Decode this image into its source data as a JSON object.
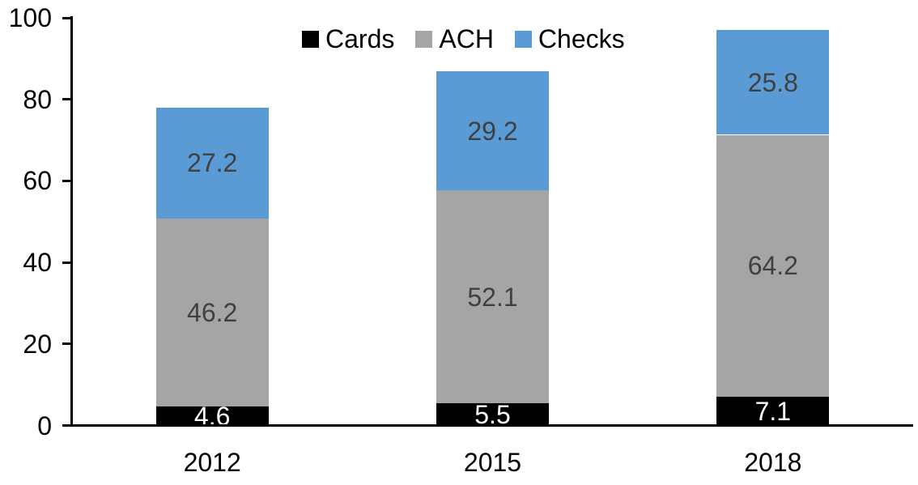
{
  "chart_data": {
    "type": "bar",
    "stacked": true,
    "title": "",
    "xlabel": "",
    "ylabel": "",
    "categories": [
      "2012",
      "2015",
      "2018"
    ],
    "series": [
      {
        "name": "Cards",
        "color": "#000000",
        "label_color": "#FFFFFF",
        "values": [
          4.6,
          5.5,
          7.1
        ]
      },
      {
        "name": "ACH",
        "color": "#A5A5A5",
        "label_color": "#404040",
        "values": [
          46.2,
          52.1,
          64.2
        ]
      },
      {
        "name": "Checks",
        "color": "#5B9BD5",
        "label_color": "#404040",
        "values": [
          27.2,
          29.2,
          25.8
        ]
      }
    ],
    "totals": [
      78.0,
      86.8,
      97.1
    ],
    "y_ticks": [
      "0",
      "20",
      "40",
      "60",
      "80",
      "100"
    ],
    "ylim": [
      0,
      100
    ],
    "grid": false,
    "legend_position": "top-center",
    "legend": [
      {
        "label": "Cards",
        "color": "#000000"
      },
      {
        "label": "ACH",
        "color": "#A5A5A5"
      },
      {
        "label": "Checks",
        "color": "#5B9BD5"
      }
    ],
    "axis_color": "#000000",
    "background_color": "#FFFFFF"
  }
}
